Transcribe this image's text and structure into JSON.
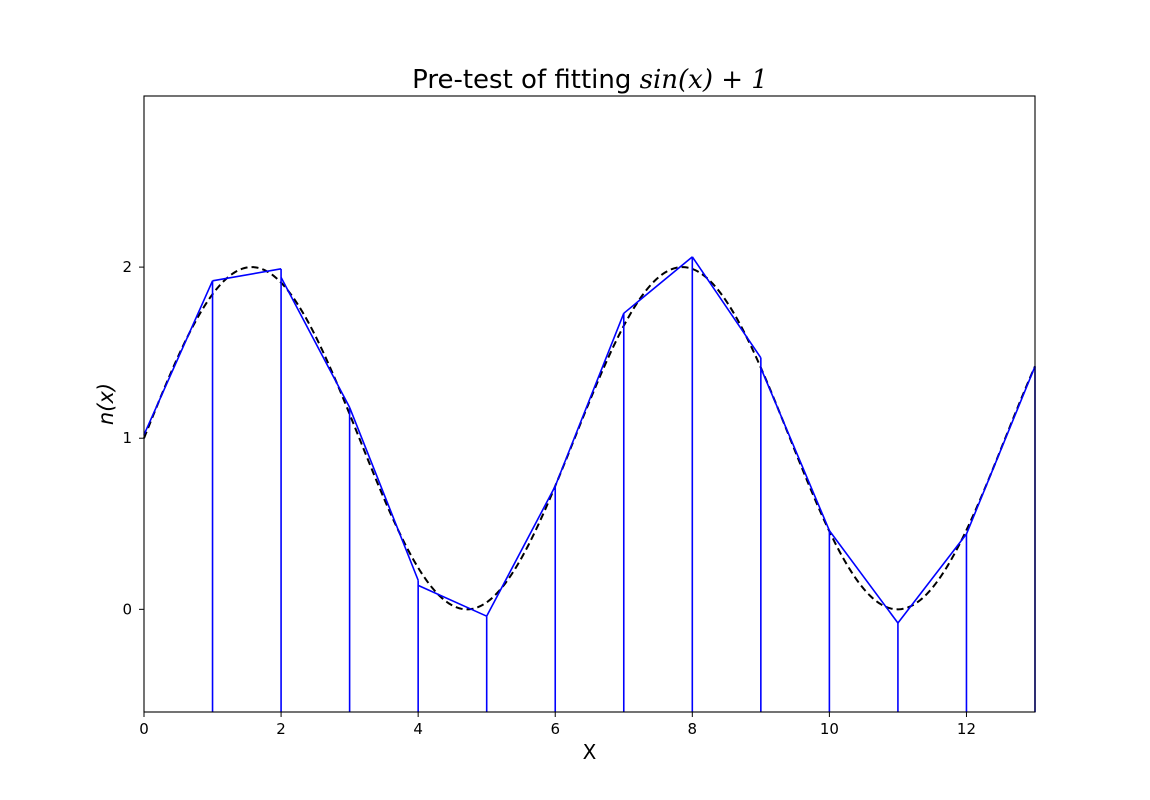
{
  "chart_data": {
    "type": "line",
    "title": {
      "prefix": "Pre-test of fitting ",
      "math": "sin(x) + 1"
    },
    "xlabel": "X",
    "ylabel": "n(x)",
    "xlim": [
      0,
      13
    ],
    "ylim": [
      -0.6,
      3.0
    ],
    "xticks": [
      0,
      2,
      4,
      6,
      8,
      10,
      12
    ],
    "xtick_labels": [
      "0",
      "2",
      "4",
      "6",
      "8",
      "10",
      "12"
    ],
    "yticks": [
      0,
      1,
      2
    ],
    "ytick_labels": [
      "0",
      "1",
      "2"
    ],
    "grid": false,
    "series": [
      {
        "style": "dashed",
        "color": "#000000",
        "function": "sin(x) + 1",
        "x_range": [
          0,
          13
        ]
      },
      {
        "style": "solid",
        "color": "#0000ff",
        "segments": [
          {
            "x0": 0,
            "y0": 1.02,
            "x1": 1,
            "y1": 1.92
          },
          {
            "x0": 1,
            "y0": 1.92,
            "x1": 2,
            "y1": 1.99
          },
          {
            "x0": 2,
            "y0": 1.94,
            "x1": 3,
            "y1": 1.18
          },
          {
            "x0": 3,
            "y0": 1.18,
            "x1": 4,
            "y1": 0.17
          },
          {
            "x0": 4,
            "y0": 0.14,
            "x1": 5,
            "y1": -0.04
          },
          {
            "x0": 5,
            "y0": -0.04,
            "x1": 6,
            "y1": 0.72
          },
          {
            "x0": 6,
            "y0": 0.72,
            "x1": 7,
            "y1": 1.73
          },
          {
            "x0": 7,
            "y0": 1.73,
            "x1": 8,
            "y1": 2.06
          },
          {
            "x0": 8,
            "y0": 2.06,
            "x1": 9,
            "y1": 1.47
          },
          {
            "x0": 9,
            "y0": 1.41,
            "x1": 10,
            "y1": 0.46
          },
          {
            "x0": 10,
            "y0": 0.46,
            "x1": 11,
            "y1": -0.08
          },
          {
            "x0": 11,
            "y0": -0.08,
            "x1": 12,
            "y1": 0.44
          },
          {
            "x0": 12,
            "y0": 0.44,
            "x1": 13,
            "y1": 1.42
          }
        ],
        "vertical_lines_at": [
          1,
          2,
          3,
          4,
          5,
          6,
          7,
          8,
          9,
          10,
          11,
          12,
          13
        ]
      }
    ]
  }
}
